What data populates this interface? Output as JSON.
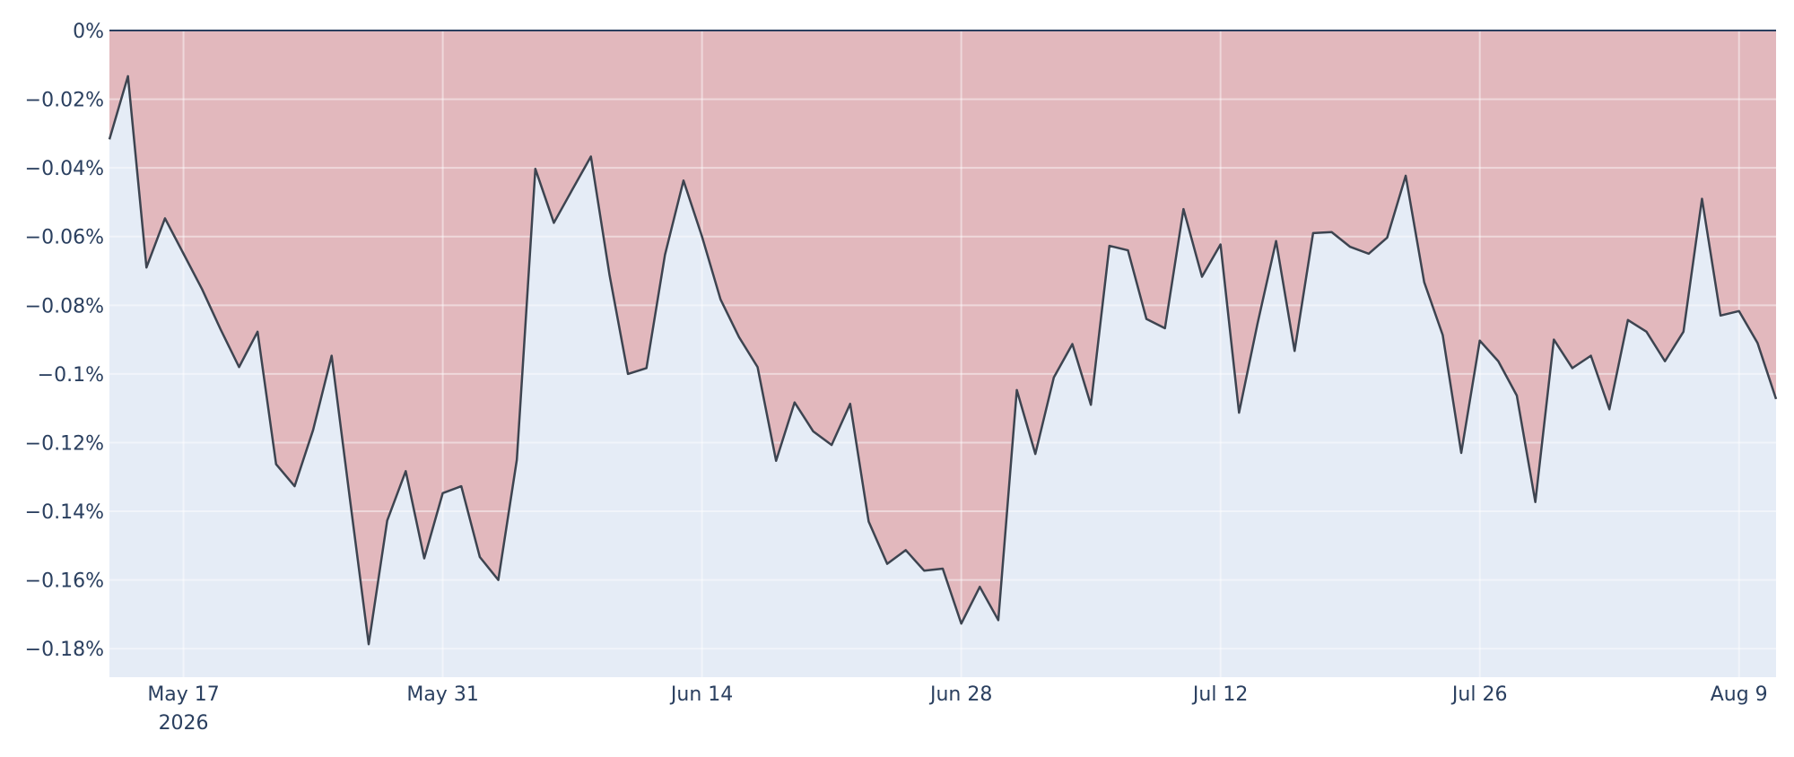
{
  "chart_data": {
    "type": "area",
    "x": [
      "2026-05-13",
      "2026-05-14",
      "2026-05-15",
      "2026-05-16",
      "2026-05-17",
      "2026-05-18",
      "2026-05-19",
      "2026-05-20",
      "2026-05-21",
      "2026-05-22",
      "2026-05-23",
      "2026-05-24",
      "2026-05-25",
      "2026-05-26",
      "2026-05-27",
      "2026-05-28",
      "2026-05-29",
      "2026-05-30",
      "2026-05-31",
      "2026-06-01",
      "2026-06-02",
      "2026-06-03",
      "2026-06-04",
      "2026-06-05",
      "2026-06-06",
      "2026-06-07",
      "2026-06-08",
      "2026-06-09",
      "2026-06-10",
      "2026-06-11",
      "2026-06-12",
      "2026-06-13",
      "2026-06-14",
      "2026-06-15",
      "2026-06-16",
      "2026-06-17",
      "2026-06-18",
      "2026-06-19",
      "2026-06-20",
      "2026-06-21",
      "2026-06-22",
      "2026-06-23",
      "2026-06-24",
      "2026-06-25",
      "2026-06-26",
      "2026-06-27",
      "2026-06-28",
      "2026-06-29",
      "2026-06-30",
      "2026-07-01",
      "2026-07-02",
      "2026-07-03",
      "2026-07-04",
      "2026-07-05",
      "2026-07-06",
      "2026-07-07",
      "2026-07-08",
      "2026-07-09",
      "2026-07-10",
      "2026-07-11",
      "2026-07-12",
      "2026-07-13",
      "2026-07-14",
      "2026-07-15",
      "2026-07-16",
      "2026-07-17",
      "2026-07-18",
      "2026-07-19",
      "2026-07-20",
      "2026-07-21",
      "2026-07-22",
      "2026-07-23",
      "2026-07-24",
      "2026-07-25",
      "2026-07-26",
      "2026-07-27",
      "2026-07-28",
      "2026-07-29",
      "2026-07-30",
      "2026-07-31",
      "2026-08-01",
      "2026-08-02",
      "2026-08-03",
      "2026-08-04",
      "2026-08-05",
      "2026-08-06",
      "2026-08-07",
      "2026-08-08",
      "2026-08-09",
      "2026-08-10",
      "2026-08-11"
    ],
    "series": [
      {
        "color": "#3d4450",
        "fill": "#e2b8bd",
        "values": [
          -0.0317,
          -0.0133,
          -0.069,
          -0.0547,
          -0.065,
          -0.0753,
          -0.087,
          -0.098,
          -0.0877,
          -0.1263,
          -0.1327,
          -0.1163,
          -0.0947,
          -0.137,
          -0.1787,
          -0.1427,
          -0.1283,
          -0.1537,
          -0.1347,
          -0.1327,
          -0.1533,
          -0.16,
          -0.125,
          -0.0403,
          -0.056,
          -0.0463,
          -0.0367,
          -0.071,
          -0.1,
          -0.0983,
          -0.0653,
          -0.0437,
          -0.06,
          -0.0783,
          -0.0893,
          -0.098,
          -0.1253,
          -0.1083,
          -0.1167,
          -0.1207,
          -0.1087,
          -0.143,
          -0.1553,
          -0.1513,
          -0.1573,
          -0.1567,
          -0.1727,
          -0.162,
          -0.1717,
          -0.1047,
          -0.1233,
          -0.101,
          -0.0913,
          -0.109,
          -0.0627,
          -0.064,
          -0.084,
          -0.0867,
          -0.052,
          -0.0717,
          -0.0623,
          -0.1113,
          -0.0853,
          -0.0613,
          -0.0933,
          -0.059,
          -0.0587,
          -0.063,
          -0.065,
          -0.0603,
          -0.0423,
          -0.0733,
          -0.0887,
          -0.123,
          -0.0903,
          -0.0963,
          -0.1063,
          -0.1373,
          -0.09,
          -0.0983,
          -0.0947,
          -0.1103,
          -0.0843,
          -0.0877,
          -0.0963,
          -0.0877,
          -0.049,
          -0.083,
          -0.0817,
          -0.091,
          -0.1073
        ]
      }
    ],
    "xlim": [
      "2026-05-13",
      "2026-08-11"
    ],
    "xticks": [
      {
        "value": "2026-05-17",
        "label": "May 17",
        "sublabel": "2026"
      },
      {
        "value": "2026-05-31",
        "label": "May 31"
      },
      {
        "value": "2026-06-14",
        "label": "Jun 14"
      },
      {
        "value": "2026-06-28",
        "label": "Jun 28"
      },
      {
        "value": "2026-07-12",
        "label": "Jul 12"
      },
      {
        "value": "2026-07-26",
        "label": "Jul 26"
      },
      {
        "value": "2026-08-09",
        "label": "Aug 9"
      }
    ],
    "ylim": [
      -0.1883,
      0
    ],
    "yticks": [
      {
        "value": 0,
        "label": "0%"
      },
      {
        "value": -0.02,
        "label": "−0.02%"
      },
      {
        "value": -0.04,
        "label": "−0.04%"
      },
      {
        "value": -0.06,
        "label": "−0.06%"
      },
      {
        "value": -0.08,
        "label": "−0.08%"
      },
      {
        "value": -0.1,
        "label": "−0.1%"
      },
      {
        "value": -0.12,
        "label": "−0.12%"
      },
      {
        "value": -0.14,
        "label": "−0.14%"
      },
      {
        "value": -0.16,
        "label": "−0.16%"
      },
      {
        "value": -0.18,
        "label": "−0.18%"
      }
    ],
    "grid": true,
    "plot_bgcolor": "#e5ecf6"
  }
}
